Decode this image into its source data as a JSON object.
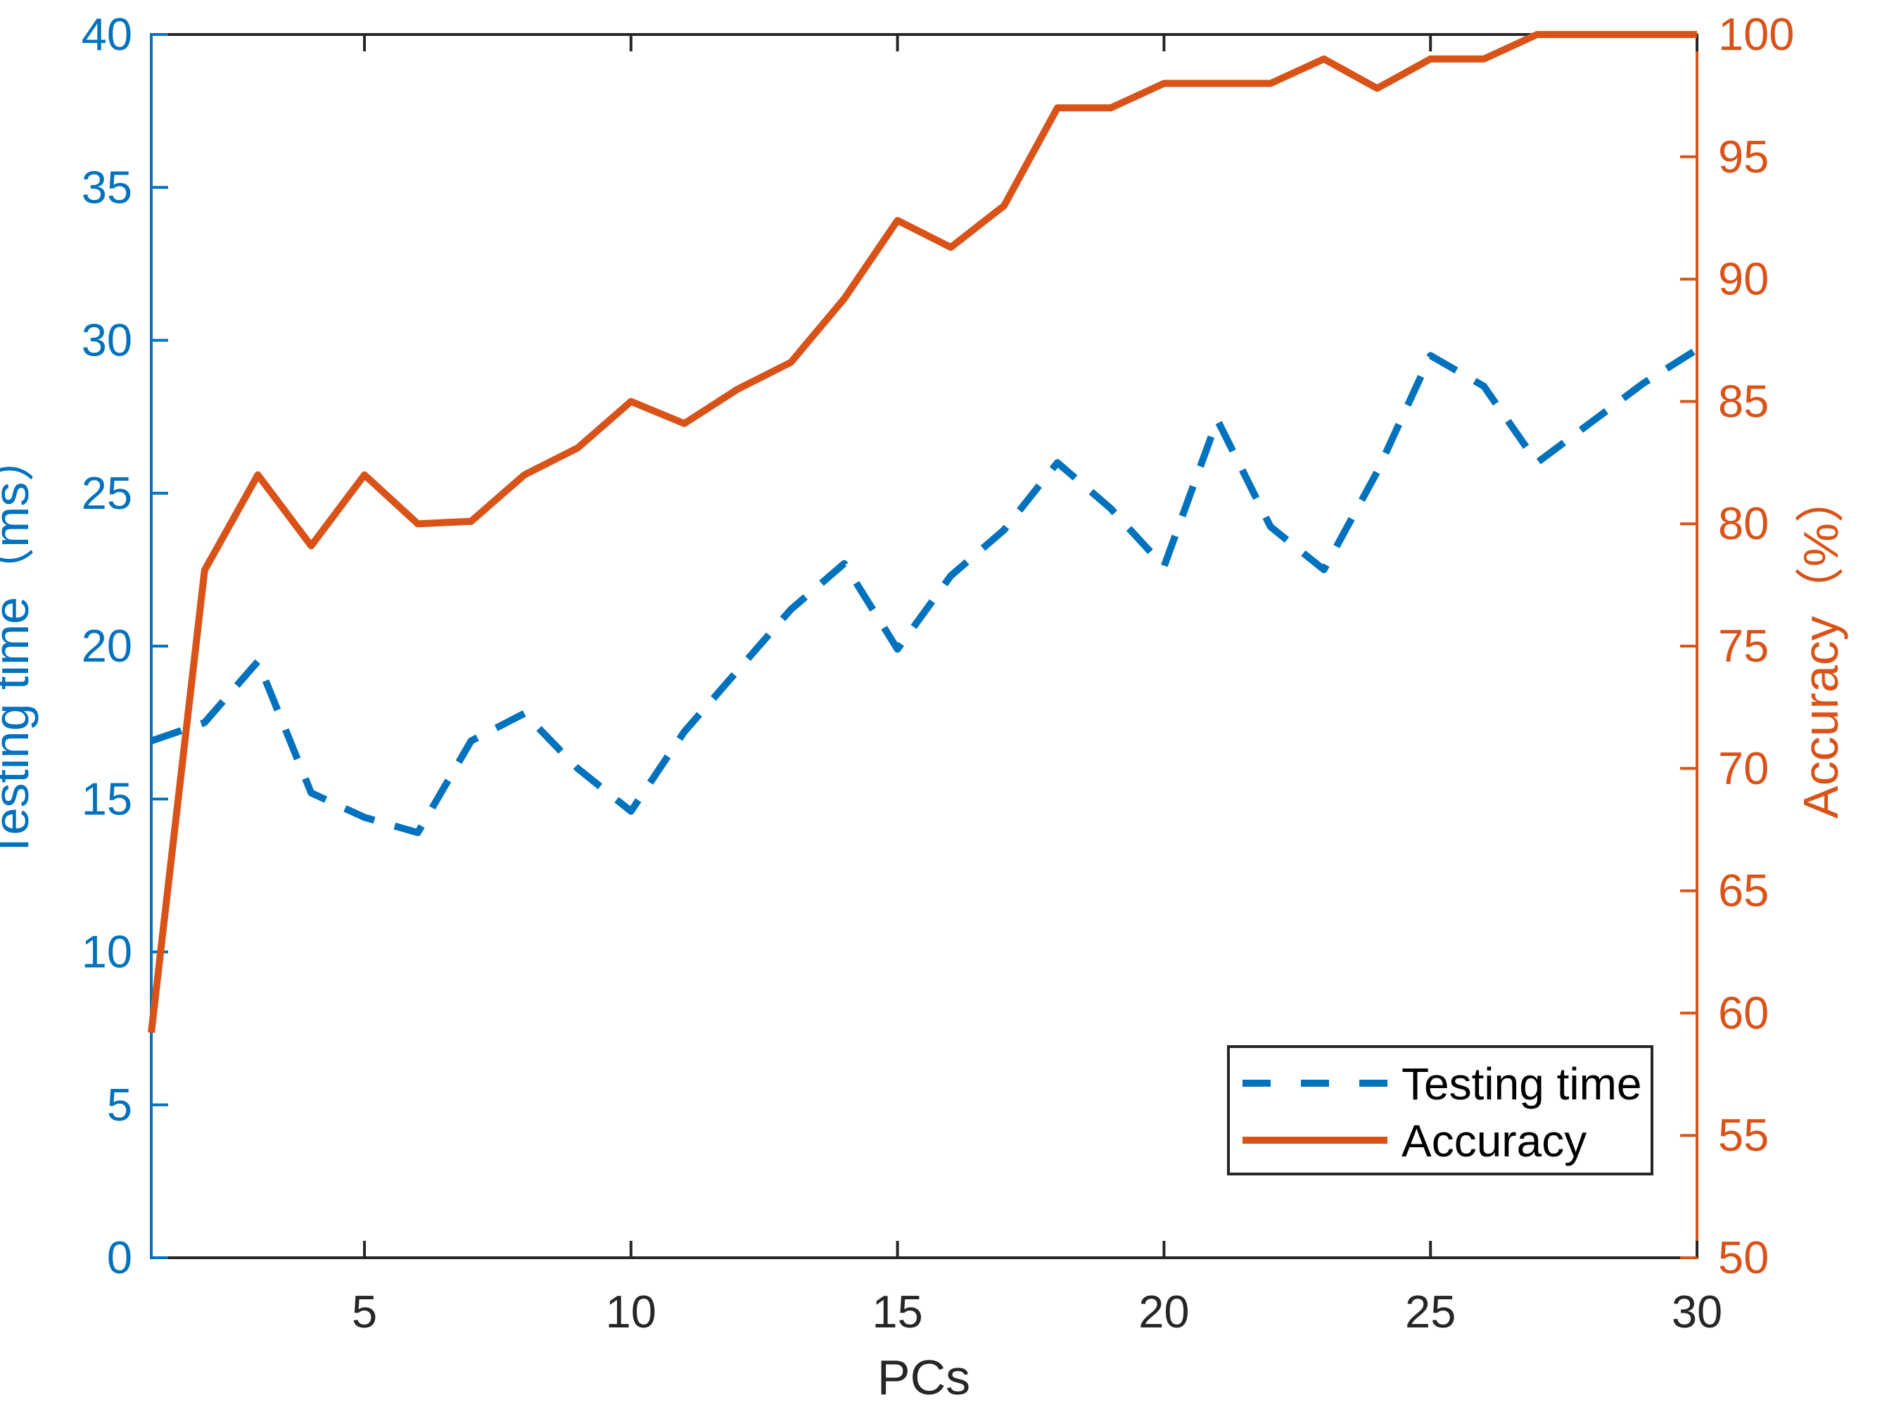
{
  "chart_data": {
    "type": "line",
    "title": "",
    "xlabel": "PCs",
    "x": [
      1,
      2,
      3,
      4,
      5,
      6,
      7,
      8,
      9,
      10,
      11,
      12,
      13,
      14,
      15,
      16,
      17,
      18,
      19,
      20,
      21,
      22,
      23,
      24,
      25,
      26,
      27,
      28,
      29,
      30
    ],
    "xlim": [
      1,
      30
    ],
    "x_ticks": [
      5,
      10,
      15,
      20,
      25,
      30
    ],
    "grid": false,
    "background": "#FFFFFF",
    "axis_dark_color": "#262626",
    "left_axis": {
      "label": "Testing time（ms）",
      "color": "#0072BD",
      "range": [
        0,
        40
      ],
      "ticks": [
        0,
        5,
        10,
        15,
        20,
        25,
        30,
        35,
        40
      ]
    },
    "right_axis": {
      "label": "Accuracy（%）",
      "color": "#D95319",
      "range": [
        50,
        100
      ],
      "ticks": [
        50,
        55,
        60,
        65,
        70,
        75,
        80,
        85,
        90,
        95,
        100
      ]
    },
    "series": [
      {
        "name": "Testing time",
        "axis": "left",
        "style": "dashed",
        "color": "#0072BD",
        "values": [
          16.9,
          17.5,
          19.5,
          15.2,
          14.4,
          13.9,
          16.9,
          17.8,
          16.0,
          14.6,
          17.2,
          19.2,
          21.2,
          22.7,
          19.9,
          22.3,
          23.8,
          26.0,
          24.5,
          22.6,
          27.4,
          23.9,
          22.5,
          25.7,
          29.5,
          28.5,
          26.0,
          27.3,
          28.6,
          29.7
        ]
      },
      {
        "name": "Accuracy",
        "axis": "right",
        "style": "solid",
        "color": "#D95319",
        "values": [
          59.2,
          78.1,
          82.0,
          79.1,
          82.0,
          80.0,
          80.1,
          82.0,
          83.1,
          85.0,
          84.1,
          85.5,
          86.6,
          89.2,
          92.4,
          91.3,
          93.0,
          97.0,
          97.0,
          98.0,
          98.0,
          98.0,
          99.0,
          97.8,
          99.0,
          99.0,
          100,
          100,
          100,
          100
        ]
      }
    ],
    "legend": {
      "position": "bottom-right",
      "entries": [
        "Testing time",
        "Accuracy"
      ]
    }
  }
}
